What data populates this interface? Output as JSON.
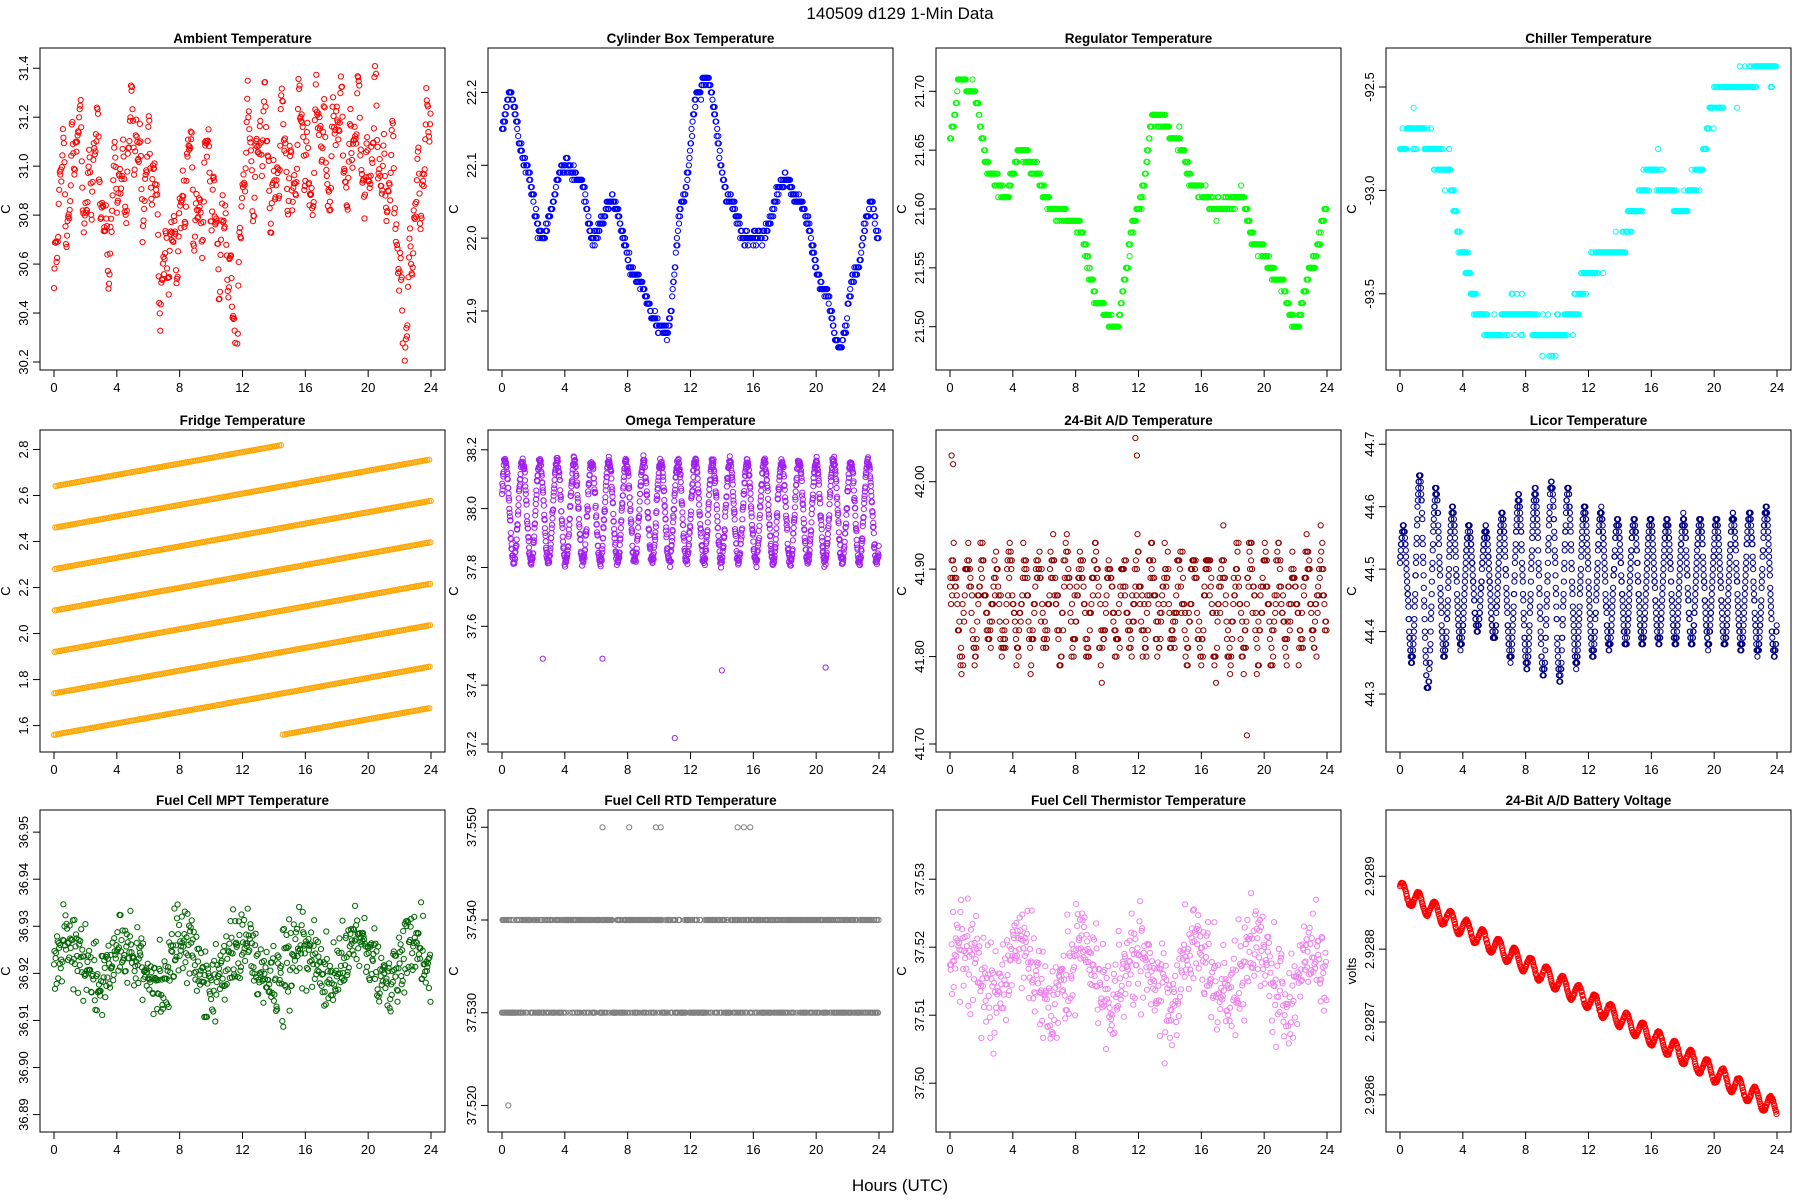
{
  "figure": {
    "title": "140509   d129   1-Min Data",
    "x_label": "Hours (UTC)"
  },
  "chart_data": [
    {
      "type": "scatter",
      "title": "Ambient Temperature",
      "ylabel": "C",
      "color": "#ff0000",
      "xlim": [
        0,
        24
      ],
      "ylim": [
        30.2,
        31.45
      ],
      "xticks": [
        0,
        4,
        8,
        12,
        16,
        20,
        24
      ],
      "yticks": [
        30.2,
        30.4,
        30.6,
        30.8,
        31.0,
        31.2,
        31.4
      ],
      "ydec": 1,
      "series": {
        "gen": "walk",
        "params": {
          "a": 30.95,
          "s": 0.2
        },
        "keypoints": [
          [
            0,
            30.4
          ],
          [
            0.5,
            30.95
          ],
          [
            1.5,
            31.0
          ],
          [
            3,
            30.95
          ],
          [
            3.5,
            30.7
          ],
          [
            4.5,
            31.05
          ],
          [
            5.5,
            31.05
          ],
          [
            7.5,
            30.55
          ],
          [
            8,
            30.9
          ],
          [
            10,
            30.9
          ],
          [
            11.5,
            30.45
          ],
          [
            12.5,
            31.1
          ],
          [
            14,
            31.0
          ],
          [
            16,
            31.05
          ],
          [
            18,
            31.1
          ],
          [
            21,
            31.05
          ],
          [
            22.5,
            30.4
          ],
          [
            23.5,
            31.1
          ],
          [
            24,
            31.15
          ]
        ]
      }
    },
    {
      "type": "scatter",
      "title": "Cylinder Box Temperature",
      "ylabel": "C",
      "color": "#0000ff",
      "xlim": [
        0,
        24
      ],
      "ylim": [
        21.83,
        22.25
      ],
      "xticks": [
        0,
        4,
        8,
        12,
        16,
        20,
        24
      ],
      "yticks": [
        21.9,
        22.0,
        22.1,
        22.2
      ],
      "ydec": 1,
      "series": {
        "gen": "smooth",
        "params": {
          "q": 0.01,
          "jitter": 0.01
        },
        "keypoints": [
          [
            0,
            22.15
          ],
          [
            0.5,
            22.2
          ],
          [
            1.5,
            22.1
          ],
          [
            2.5,
            22.0
          ],
          [
            4,
            22.1
          ],
          [
            5,
            22.08
          ],
          [
            5.8,
            22.0
          ],
          [
            7,
            22.05
          ],
          [
            8.5,
            21.95
          ],
          [
            10,
            21.88
          ],
          [
            10.5,
            21.87
          ],
          [
            11.5,
            22.05
          ],
          [
            12.5,
            22.2
          ],
          [
            13,
            22.22
          ],
          [
            14.5,
            22.05
          ],
          [
            15.5,
            22.0
          ],
          [
            16.5,
            22.0
          ],
          [
            18,
            22.08
          ],
          [
            19,
            22.05
          ],
          [
            20.5,
            21.93
          ],
          [
            21.5,
            21.85
          ],
          [
            22.5,
            21.95
          ],
          [
            23.5,
            22.05
          ],
          [
            24,
            22.0
          ]
        ]
      }
    },
    {
      "type": "scatter",
      "title": "Regulator Temperature",
      "ylabel": "C",
      "color": "#00ff00",
      "xlim": [
        0,
        24
      ],
      "ylim": [
        21.47,
        21.73
      ],
      "xticks": [
        0,
        4,
        8,
        12,
        16,
        20,
        24
      ],
      "yticks": [
        21.5,
        21.55,
        21.6,
        21.65,
        21.7
      ],
      "ydec": 2,
      "series": {
        "gen": "smooth",
        "params": {
          "q": 0.01,
          "jitter": 0.006
        },
        "keypoints": [
          [
            0,
            21.66
          ],
          [
            0.7,
            21.71
          ],
          [
            1.5,
            21.7
          ],
          [
            2.5,
            21.63
          ],
          [
            3.5,
            21.61
          ],
          [
            4.5,
            21.65
          ],
          [
            5.5,
            21.63
          ],
          [
            6.5,
            21.6
          ],
          [
            8,
            21.59
          ],
          [
            9.5,
            21.52
          ],
          [
            10.5,
            21.5
          ],
          [
            12,
            21.6
          ],
          [
            13,
            21.68
          ],
          [
            14.5,
            21.66
          ],
          [
            15.5,
            21.62
          ],
          [
            17,
            21.6
          ],
          [
            18.5,
            21.61
          ],
          [
            19.5,
            21.57
          ],
          [
            21,
            21.54
          ],
          [
            22,
            21.5
          ],
          [
            23,
            21.55
          ],
          [
            24,
            21.6
          ]
        ]
      }
    },
    {
      "type": "scatter",
      "title": "Chiller Temperature",
      "ylabel": "C",
      "color": "#00ffff",
      "xlim": [
        0,
        24
      ],
      "ylim": [
        -93.83,
        -92.35
      ],
      "xticks": [
        0,
        4,
        8,
        12,
        16,
        20,
        24
      ],
      "yticks": [
        -93.5,
        -93.0,
        -92.5
      ],
      "ydec": 1,
      "series": {
        "gen": "smooth",
        "params": {
          "q": 0.1,
          "jitter": 0.06
        },
        "keypoints": [
          [
            0,
            -92.8
          ],
          [
            1,
            -92.7
          ],
          [
            2,
            -92.8
          ],
          [
            3,
            -92.9
          ],
          [
            4,
            -93.3
          ],
          [
            5,
            -93.6
          ],
          [
            6,
            -93.7
          ],
          [
            7,
            -93.6
          ],
          [
            8,
            -93.6
          ],
          [
            9,
            -93.7
          ],
          [
            10,
            -93.7
          ],
          [
            11,
            -93.6
          ],
          [
            12,
            -93.4
          ],
          [
            13,
            -93.3
          ],
          [
            14,
            -93.3
          ],
          [
            15,
            -93.1
          ],
          [
            16,
            -92.9
          ],
          [
            17,
            -93.0
          ],
          [
            18,
            -93.1
          ],
          [
            19,
            -92.9
          ],
          [
            20,
            -92.6
          ],
          [
            21,
            -92.5
          ],
          [
            22,
            -92.5
          ],
          [
            23,
            -92.4
          ],
          [
            24,
            -92.4
          ]
        ]
      }
    },
    {
      "type": "scatter",
      "title": "Fridge Temperature",
      "ylabel": "C",
      "color": "#ffa500",
      "xlim": [
        0,
        24
      ],
      "ylim": [
        1.52,
        2.85
      ],
      "xticks": [
        0,
        4,
        8,
        12,
        16,
        20,
        24
      ],
      "yticks": [
        1.6,
        1.8,
        2.0,
        2.2,
        2.4,
        2.6,
        2.8
      ],
      "ydec": 1,
      "series": {
        "gen": "saw",
        "params": {
          "lo": 1.56,
          "hi": 2.82,
          "period": 1.28
        }
      }
    },
    {
      "type": "scatter",
      "title": "Omega Temperature",
      "ylabel": "C",
      "color": "#a020f0",
      "xlim": [
        0,
        24
      ],
      "ylim": [
        37.2,
        38.24
      ],
      "xticks": [
        0,
        4,
        8,
        12,
        16,
        20,
        24
      ],
      "yticks": [
        37.2,
        37.4,
        37.6,
        37.8,
        38.0,
        38.2
      ],
      "ydec": 1,
      "series": {
        "gen": "osc",
        "params": {
          "base": 37.99,
          "amp": 0.17,
          "period": 1.1,
          "jitter": 0.02
        },
        "outliers": [
          [
            2.6,
            37.49
          ],
          [
            6.4,
            37.49
          ],
          [
            11.0,
            37.22
          ],
          [
            14.0,
            37.45
          ],
          [
            20.6,
            37.46
          ]
        ]
      }
    },
    {
      "type": "scatter",
      "title": "24-Bit A/D Temperature",
      "ylabel": "C",
      "color": "#8b0000",
      "xlim": [
        0,
        24
      ],
      "ylim": [
        41.7,
        42.05
      ],
      "xticks": [
        0,
        4,
        8,
        12,
        16,
        20,
        24
      ],
      "yticks": [
        41.7,
        41.8,
        41.9,
        42.0
      ],
      "ydec": 2,
      "series": {
        "gen": "discrete",
        "params": {
          "base": 41.86,
          "amp": 0.05,
          "q": 0.01,
          "jitter": 0.035,
          "period": 0.9
        },
        "outliers": [
          [
            0.1,
            42.03
          ],
          [
            0.2,
            42.02
          ],
          [
            11.8,
            42.05
          ],
          [
            11.9,
            42.03
          ],
          [
            18.9,
            41.71
          ]
        ]
      }
    },
    {
      "type": "scatter",
      "title": "Licor Temperature",
      "ylabel": "C",
      "color": "#000080",
      "xlim": [
        0,
        24
      ],
      "ylim": [
        44.22,
        44.71
      ],
      "xticks": [
        0,
        4,
        8,
        12,
        16,
        20,
        24
      ],
      "yticks": [
        44.3,
        44.4,
        44.5,
        44.6,
        44.7
      ],
      "ydec": 1,
      "series": {
        "gen": "osc",
        "params": {
          "base": 44.48,
          "amp": 0.12,
          "period": 1.05,
          "jitter": 0.005,
          "q": 0.01
        },
        "envelope": [
          [
            0,
            0.08
          ],
          [
            1.5,
            0.18
          ],
          [
            3,
            0.12
          ],
          [
            5,
            0.08
          ],
          [
            8,
            0.14
          ],
          [
            10,
            0.16
          ],
          [
            12,
            0.12
          ],
          [
            14,
            0.1
          ],
          [
            16,
            0.1
          ],
          [
            20,
            0.1
          ],
          [
            24,
            0.12
          ]
        ]
      }
    },
    {
      "type": "scatter",
      "title": "Fuel Cell MPT Temperature",
      "ylabel": "C",
      "color": "#006400",
      "xlim": [
        0,
        24
      ],
      "ylim": [
        36.888,
        36.953
      ],
      "xticks": [
        0,
        4,
        8,
        12,
        16,
        20,
        24
      ],
      "yticks": [
        36.89,
        36.9,
        36.91,
        36.92,
        36.93,
        36.94,
        36.95
      ],
      "ydec": 2,
      "series": {
        "gen": "noise",
        "params": {
          "base": 36.922,
          "sd": 0.008
        }
      }
    },
    {
      "type": "scatter",
      "title": "Fuel Cell RTD Temperature",
      "ylabel": "C",
      "color": "#808080",
      "xlim": [
        0,
        24
      ],
      "ylim": [
        37.518,
        37.551
      ],
      "xticks": [
        0,
        4,
        8,
        12,
        16,
        20,
        24
      ],
      "yticks": [
        37.52,
        37.53,
        37.54,
        37.55
      ],
      "ydec": 3,
      "series": {
        "gen": "twolevel",
        "params": {
          "a": 37.53,
          "b": 37.54
        },
        "outliers": [
          [
            0.4,
            37.52
          ],
          [
            6.4,
            37.55
          ],
          [
            8.1,
            37.55
          ],
          [
            9.8,
            37.55
          ],
          [
            10.1,
            37.55
          ],
          [
            15.0,
            37.55
          ],
          [
            15.4,
            37.55
          ],
          [
            15.8,
            37.55
          ]
        ]
      }
    },
    {
      "type": "scatter",
      "title": "Fuel Cell Thermistor Temperature",
      "ylabel": "C",
      "color": "#ee82ee",
      "xlim": [
        0,
        24
      ],
      "ylim": [
        37.494,
        37.539
      ],
      "xticks": [
        0,
        4,
        8,
        12,
        16,
        20,
        24
      ],
      "yticks": [
        37.5,
        37.51,
        37.52,
        37.53
      ],
      "ydec": 2,
      "series": {
        "gen": "noise",
        "params": {
          "base": 37.516,
          "sd": 0.007
        }
      }
    },
    {
      "type": "scatter",
      "title": "24-Bit A/D Battery Voltage",
      "ylabel": "volts",
      "color": "#ff0000",
      "xlim": [
        0,
        24
      ],
      "ylim": [
        2.92856,
        2.92898
      ],
      "xticks": [
        0,
        4,
        8,
        12,
        16,
        20,
        24
      ],
      "yticks": [
        2.9286,
        2.9287,
        2.9288,
        2.9289
      ],
      "ydec": 4,
      "series": {
        "gen": "decay",
        "params": {
          "start": 2.92888,
          "end": 2.92858,
          "amp": 1.25e-05,
          "period": 1.02
        }
      }
    }
  ]
}
